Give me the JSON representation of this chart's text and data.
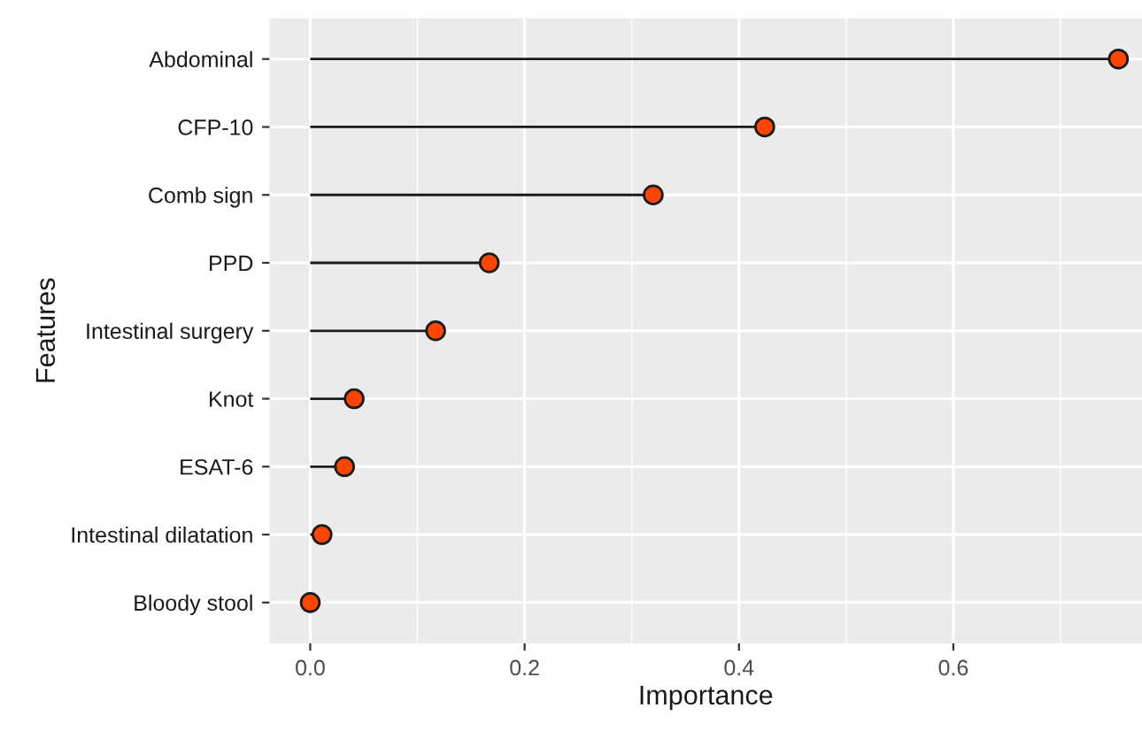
{
  "chart_data": {
    "type": "lollipop",
    "orientation": "horizontal",
    "xlabel": "Importance",
    "ylabel": "Features",
    "categories": [
      "Abdominal",
      "CFP-10",
      "Comb sign",
      "PPD",
      "Intestinal surgery",
      "Knot",
      "ESAT-6",
      "Intestinal dilatation",
      "Bloody stool"
    ],
    "values": [
      0.754,
      0.424,
      0.32,
      0.167,
      0.117,
      0.041,
      0.032,
      0.011,
      0.0
    ],
    "color": "#ff4500",
    "marker": "circle",
    "xlim": [
      -0.038,
      0.776
    ],
    "xticks": [
      {
        "value": 0,
        "label": "0.0"
      },
      {
        "value": 0.2,
        "label": "0.2"
      },
      {
        "value": 0.4,
        "label": "0.4"
      },
      {
        "value": 0.6,
        "label": "0.6"
      }
    ],
    "grid": true
  }
}
